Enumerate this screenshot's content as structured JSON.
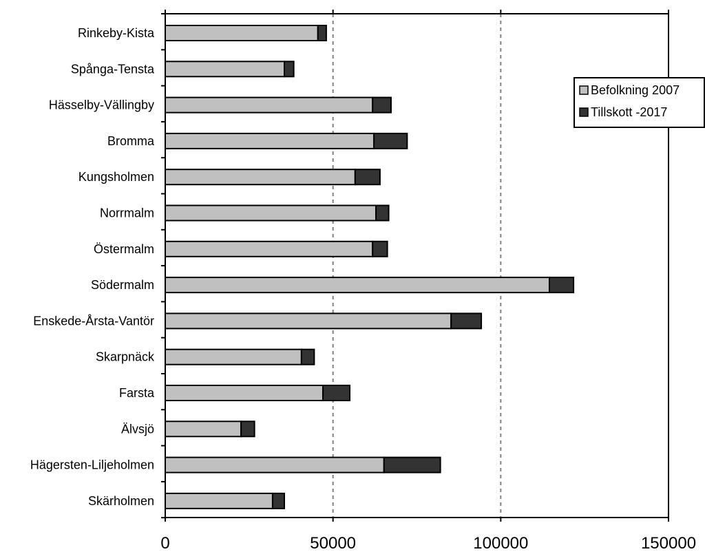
{
  "chart_data": {
    "type": "bar",
    "orientation": "horizontal",
    "stacked": true,
    "categories": [
      "Rinkeby-Kista",
      "Spånga-Tensta",
      "Hässelby-Vällingby",
      "Bromma",
      "Kungsholmen",
      "Norrmalm",
      "Östermalm",
      "Södermalm",
      "Enskede-Årsta-Vantör",
      "Skarpnäck",
      "Farsta",
      "Älvsjö",
      "Hägersten-Liljeholmen",
      "Skärholmen"
    ],
    "series": [
      {
        "name": "Befolkning 2007",
        "color": "#c0c0c0",
        "values": [
          45500,
          35500,
          61800,
          62200,
          56600,
          62800,
          61800,
          114500,
          85200,
          40600,
          47000,
          22600,
          65200,
          32000
        ]
      },
      {
        "name": "Tillskott -2017",
        "color": "#333333",
        "values": [
          2500,
          2800,
          5500,
          9900,
          7400,
          3800,
          4400,
          7200,
          9000,
          3800,
          8000,
          4000,
          16800,
          3500
        ]
      }
    ],
    "xlim": [
      0,
      150000
    ],
    "xticks": [
      0,
      50000,
      100000,
      150000
    ],
    "grid": "vertical dashed at major ticks",
    "legend": "right",
    "title": "",
    "xlabel": "",
    "ylabel": ""
  }
}
